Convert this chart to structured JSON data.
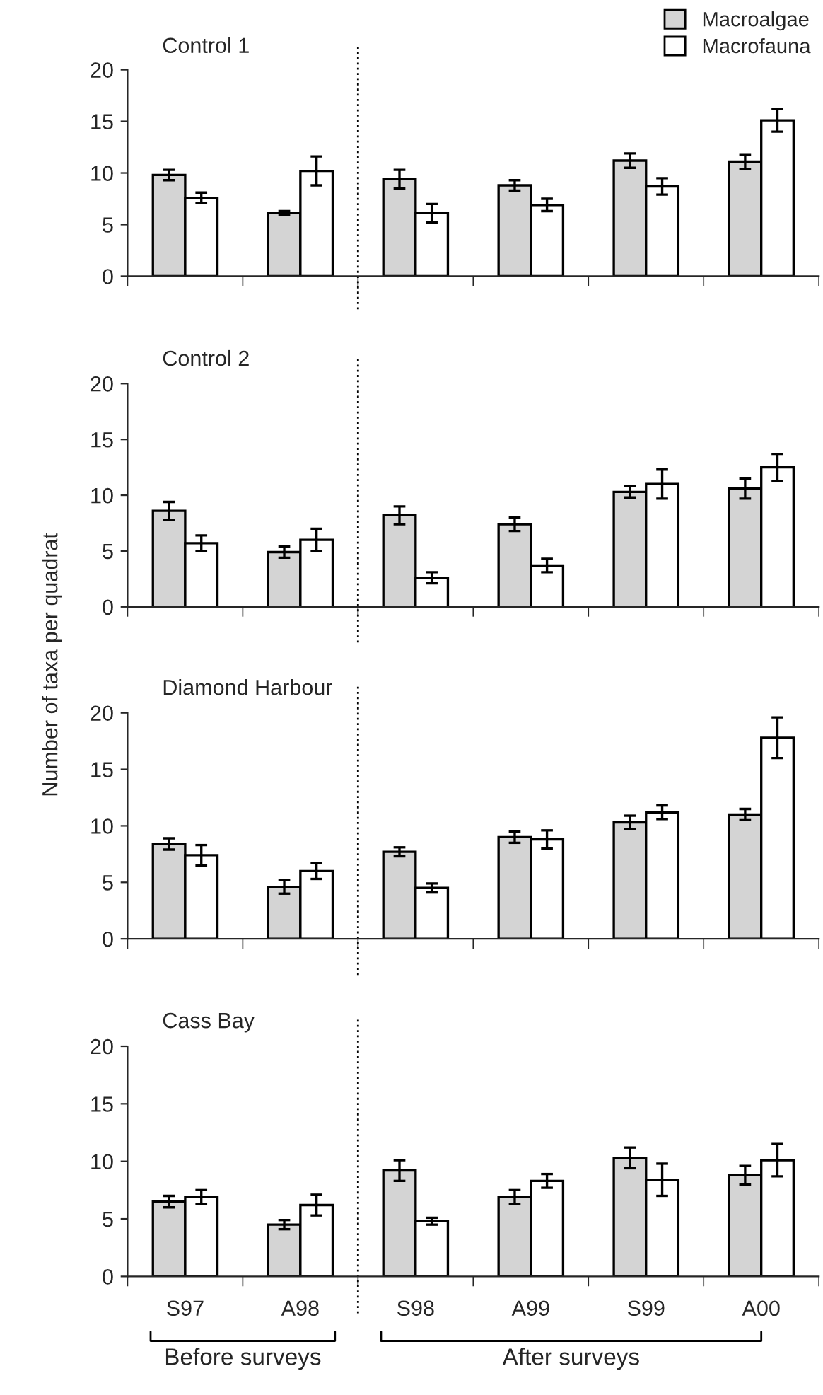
{
  "chart_data": [
    {
      "type": "bar",
      "title": "Control 1",
      "categories": [
        null,
        null,
        null,
        null,
        null,
        null
      ],
      "tick_labels": "y",
      "legend": "top right",
      "ylim": [
        0,
        20
      ],
      "yticks": [
        0,
        5,
        10,
        15,
        20
      ],
      "series": [
        {
          "name": "Macroalgae",
          "color": "#d4d4d4",
          "values": [
            9.8,
            6.1,
            9.4,
            8.8,
            11.2,
            11.1
          ],
          "errors": [
            0.5,
            0.2,
            0.9,
            0.5,
            0.7,
            0.7
          ]
        },
        {
          "name": "Macrofauna",
          "color": "#ffffff",
          "values": [
            7.6,
            10.2,
            6.1,
            6.9,
            8.7,
            15.1
          ],
          "errors": [
            0.5,
            1.4,
            0.9,
            0.6,
            0.8,
            1.1
          ]
        }
      ]
    },
    {
      "type": "bar",
      "title": "Control 2",
      "ylabel": "Number of taxa per quadrat",
      "categories": [
        null,
        null,
        null,
        null,
        null,
        null
      ],
      "tick_labels": "y",
      "ylim": [
        0,
        20
      ],
      "yticks": [
        0,
        5,
        10,
        15,
        20
      ],
      "series": [
        {
          "color": "#d4d4d4",
          "values": [
            8.6,
            4.9,
            8.2,
            7.4,
            10.3,
            10.6
          ],
          "errors": [
            0.8,
            0.5,
            0.8,
            0.6,
            0.5,
            0.9
          ]
        },
        {
          "color": "#ffffff",
          "values": [
            5.7,
            6.0,
            2.6,
            3.7,
            11.0,
            12.5
          ],
          "errors": [
            0.7,
            1.0,
            0.5,
            0.6,
            1.3,
            1.2
          ]
        }
      ]
    },
    {
      "type": "bar",
      "title": "Diamond Harbour",
      "categories": [
        null,
        null,
        null,
        null,
        null,
        null
      ],
      "tick_labels": "y",
      "ylim": [
        0,
        20
      ],
      "yticks": [
        0,
        5,
        10,
        15,
        20
      ],
      "series": [
        {
          "color": "#d4d4d4",
          "values": [
            8.4,
            4.6,
            7.7,
            9.0,
            10.3,
            11.0
          ],
          "errors": [
            0.5,
            0.6,
            0.4,
            0.5,
            0.6,
            0.5
          ]
        },
        {
          "color": "#ffffff",
          "values": [
            7.4,
            6.0,
            4.5,
            8.8,
            11.2,
            17.8
          ],
          "errors": [
            0.9,
            0.7,
            0.4,
            0.8,
            0.6,
            1.8
          ]
        }
      ]
    },
    {
      "type": "bar",
      "title": "Cass Bay",
      "categories": [
        "S97",
        "A98",
        "S98",
        "A99",
        "S99",
        "A00"
      ],
      "ylim": [
        0,
        20
      ],
      "yticks": [
        0,
        5,
        10,
        15,
        20
      ],
      "annotations": [
        "Before surveys",
        "After surveys"
      ],
      "series": [
        {
          "color": "#d4d4d4",
          "values": [
            6.5,
            4.5,
            9.2,
            6.9,
            10.3,
            8.8
          ],
          "errors": [
            0.5,
            0.4,
            0.9,
            0.6,
            0.9,
            0.8
          ]
        },
        {
          "color": "#ffffff",
          "values": [
            6.9,
            6.2,
            4.8,
            8.3,
            8.4,
            10.1
          ],
          "errors": [
            0.6,
            0.9,
            0.3,
            0.6,
            1.4,
            1.4
          ]
        }
      ]
    }
  ]
}
